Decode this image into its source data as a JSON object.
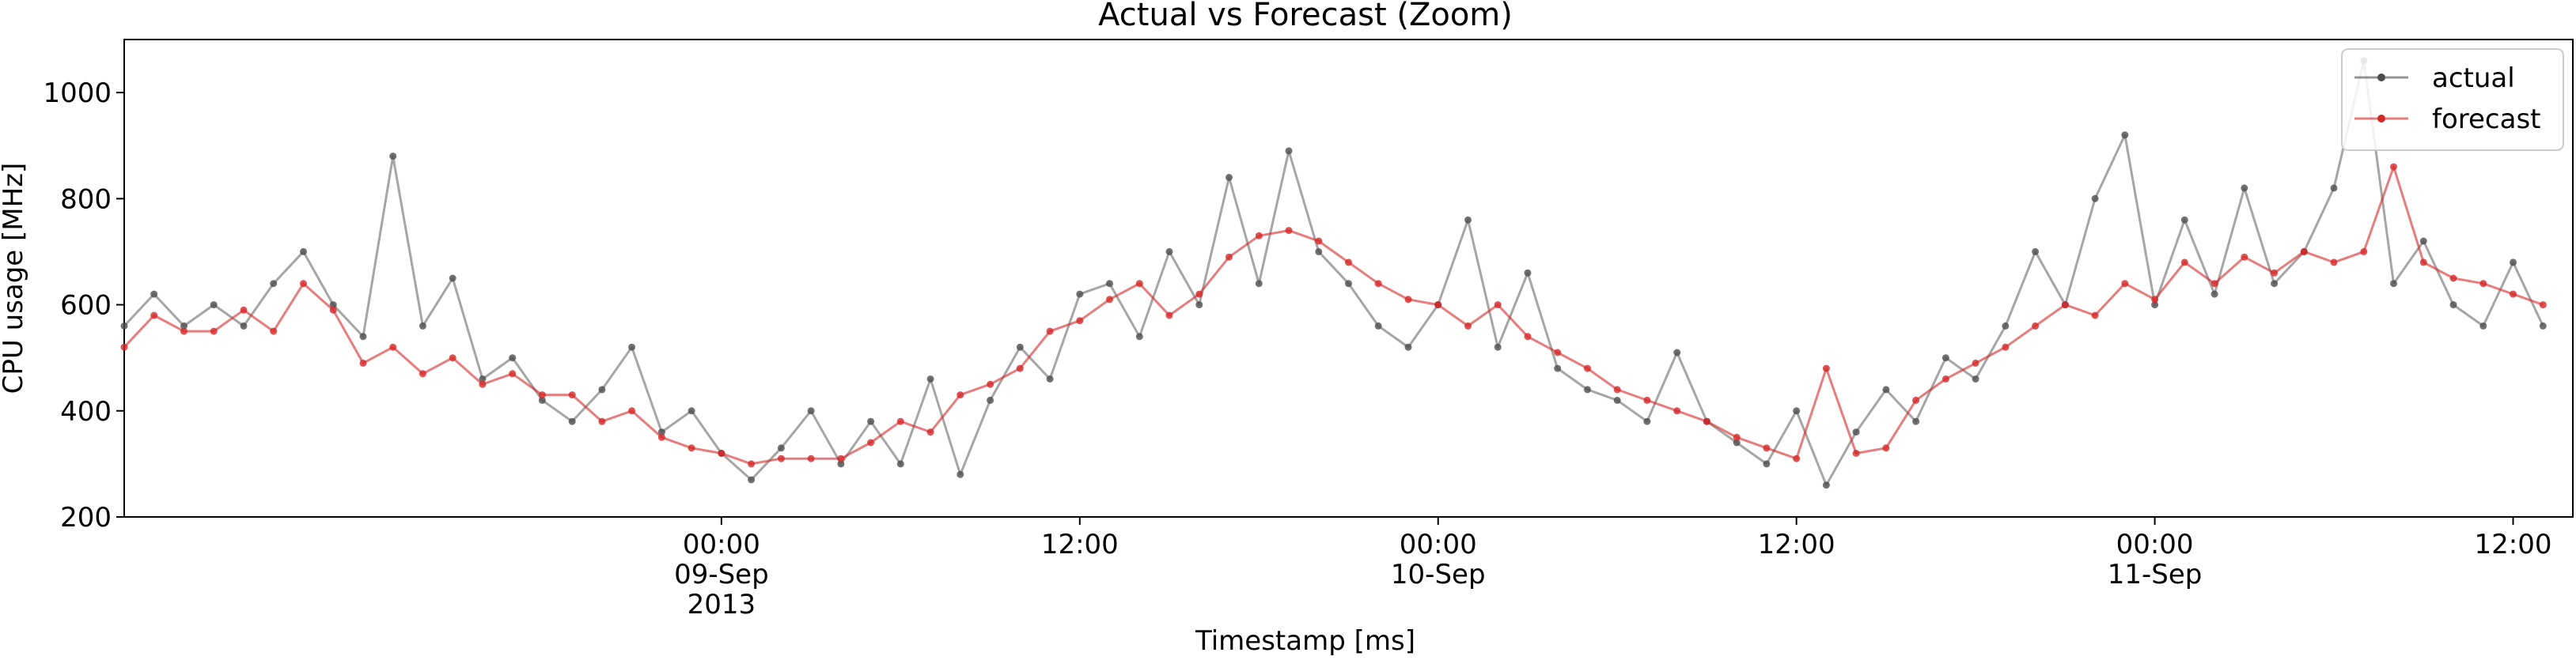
{
  "chart_data": {
    "type": "line",
    "title": "Actual vs Forecast (Zoom)",
    "xlabel": "Timestamp [ms]",
    "ylabel": "CPU usage [MHz]",
    "xlim": [
      "2013-09-08T04:00",
      "2013-09-11T14:00"
    ],
    "ylim": [
      200,
      1100
    ],
    "yticks": [
      200,
      400,
      600,
      800,
      1000
    ],
    "xticks": [
      {
        "x": "2013-09-09T00:00",
        "label": "00:00\n09-Sep\n2013"
      },
      {
        "x": "2013-09-09T12:00",
        "label": "12:00"
      },
      {
        "x": "2013-09-10T00:00",
        "label": "00:00\n10-Sep"
      },
      {
        "x": "2013-09-10T12:00",
        "label": "12:00"
      },
      {
        "x": "2013-09-11T00:00",
        "label": "00:00\n11-Sep"
      },
      {
        "x": "2013-09-11T12:00",
        "label": "12:00"
      }
    ],
    "grid": false,
    "legend_position": "top-right",
    "series": [
      {
        "name": "actual",
        "color": "#4d4d4d",
        "points": [
          [
            "2013-09-08T04:00",
            560
          ],
          [
            "2013-09-08T05:00",
            620
          ],
          [
            "2013-09-08T06:00",
            560
          ],
          [
            "2013-09-08T07:00",
            600
          ],
          [
            "2013-09-08T08:00",
            560
          ],
          [
            "2013-09-08T09:00",
            640
          ],
          [
            "2013-09-08T10:00",
            700
          ],
          [
            "2013-09-08T11:00",
            600
          ],
          [
            "2013-09-08T12:00",
            540
          ],
          [
            "2013-09-08T13:00",
            880
          ],
          [
            "2013-09-08T14:00",
            560
          ],
          [
            "2013-09-08T15:00",
            650
          ],
          [
            "2013-09-08T16:00",
            460
          ],
          [
            "2013-09-08T17:00",
            500
          ],
          [
            "2013-09-08T18:00",
            420
          ],
          [
            "2013-09-08T19:00",
            380
          ],
          [
            "2013-09-08T20:00",
            440
          ],
          [
            "2013-09-08T21:00",
            520
          ],
          [
            "2013-09-08T22:00",
            360
          ],
          [
            "2013-09-08T23:00",
            400
          ],
          [
            "2013-09-09T00:00",
            320
          ],
          [
            "2013-09-09T01:00",
            270
          ],
          [
            "2013-09-09T02:00",
            330
          ],
          [
            "2013-09-09T03:00",
            400
          ],
          [
            "2013-09-09T04:00",
            300
          ],
          [
            "2013-09-09T05:00",
            380
          ],
          [
            "2013-09-09T06:00",
            300
          ],
          [
            "2013-09-09T07:00",
            460
          ],
          [
            "2013-09-09T08:00",
            280
          ],
          [
            "2013-09-09T09:00",
            420
          ],
          [
            "2013-09-09T10:00",
            520
          ],
          [
            "2013-09-09T11:00",
            460
          ],
          [
            "2013-09-09T12:00",
            620
          ],
          [
            "2013-09-09T13:00",
            640
          ],
          [
            "2013-09-09T14:00",
            540
          ],
          [
            "2013-09-09T15:00",
            700
          ],
          [
            "2013-09-09T16:00",
            600
          ],
          [
            "2013-09-09T17:00",
            840
          ],
          [
            "2013-09-09T18:00",
            640
          ],
          [
            "2013-09-09T19:00",
            890
          ],
          [
            "2013-09-09T20:00",
            700
          ],
          [
            "2013-09-09T21:00",
            640
          ],
          [
            "2013-09-09T22:00",
            560
          ],
          [
            "2013-09-09T23:00",
            520
          ],
          [
            "2013-09-10T00:00",
            600
          ],
          [
            "2013-09-10T01:00",
            760
          ],
          [
            "2013-09-10T02:00",
            520
          ],
          [
            "2013-09-10T03:00",
            660
          ],
          [
            "2013-09-10T04:00",
            480
          ],
          [
            "2013-09-10T05:00",
            440
          ],
          [
            "2013-09-10T06:00",
            420
          ],
          [
            "2013-09-10T07:00",
            380
          ],
          [
            "2013-09-10T08:00",
            510
          ],
          [
            "2013-09-10T09:00",
            380
          ],
          [
            "2013-09-10T10:00",
            340
          ],
          [
            "2013-09-10T11:00",
            300
          ],
          [
            "2013-09-10T12:00",
            400
          ],
          [
            "2013-09-10T13:00",
            260
          ],
          [
            "2013-09-10T14:00",
            360
          ],
          [
            "2013-09-10T15:00",
            440
          ],
          [
            "2013-09-10T16:00",
            380
          ],
          [
            "2013-09-10T17:00",
            500
          ],
          [
            "2013-09-10T18:00",
            460
          ],
          [
            "2013-09-10T19:00",
            560
          ],
          [
            "2013-09-10T20:00",
            700
          ],
          [
            "2013-09-10T21:00",
            600
          ],
          [
            "2013-09-10T22:00",
            800
          ],
          [
            "2013-09-10T23:00",
            920
          ],
          [
            "2013-09-11T00:00",
            600
          ],
          [
            "2013-09-11T01:00",
            760
          ],
          [
            "2013-09-11T02:00",
            620
          ],
          [
            "2013-09-11T03:00",
            820
          ],
          [
            "2013-09-11T04:00",
            640
          ],
          [
            "2013-09-11T05:00",
            700
          ],
          [
            "2013-09-11T06:00",
            820
          ],
          [
            "2013-09-11T07:00",
            1060
          ],
          [
            "2013-09-11T08:00",
            640
          ],
          [
            "2013-09-11T09:00",
            720
          ],
          [
            "2013-09-11T10:00",
            600
          ],
          [
            "2013-09-11T11:00",
            560
          ],
          [
            "2013-09-11T12:00",
            680
          ],
          [
            "2013-09-11T13:00",
            560
          ]
        ]
      },
      {
        "name": "forecast",
        "color": "#d62728",
        "points": [
          [
            "2013-09-08T04:00",
            520
          ],
          [
            "2013-09-08T05:00",
            580
          ],
          [
            "2013-09-08T06:00",
            550
          ],
          [
            "2013-09-08T07:00",
            550
          ],
          [
            "2013-09-08T08:00",
            590
          ],
          [
            "2013-09-08T09:00",
            550
          ],
          [
            "2013-09-08T10:00",
            640
          ],
          [
            "2013-09-08T11:00",
            590
          ],
          [
            "2013-09-08T12:00",
            490
          ],
          [
            "2013-09-08T13:00",
            520
          ],
          [
            "2013-09-08T14:00",
            470
          ],
          [
            "2013-09-08T15:00",
            500
          ],
          [
            "2013-09-08T16:00",
            450
          ],
          [
            "2013-09-08T17:00",
            470
          ],
          [
            "2013-09-08T18:00",
            430
          ],
          [
            "2013-09-08T19:00",
            430
          ],
          [
            "2013-09-08T20:00",
            380
          ],
          [
            "2013-09-08T21:00",
            400
          ],
          [
            "2013-09-08T22:00",
            350
          ],
          [
            "2013-09-08T23:00",
            330
          ],
          [
            "2013-09-09T00:00",
            320
          ],
          [
            "2013-09-09T01:00",
            300
          ],
          [
            "2013-09-09T02:00",
            310
          ],
          [
            "2013-09-09T03:00",
            310
          ],
          [
            "2013-09-09T04:00",
            310
          ],
          [
            "2013-09-09T05:00",
            340
          ],
          [
            "2013-09-09T06:00",
            380
          ],
          [
            "2013-09-09T07:00",
            360
          ],
          [
            "2013-09-09T08:00",
            430
          ],
          [
            "2013-09-09T09:00",
            450
          ],
          [
            "2013-09-09T10:00",
            480
          ],
          [
            "2013-09-09T11:00",
            550
          ],
          [
            "2013-09-09T12:00",
            570
          ],
          [
            "2013-09-09T13:00",
            610
          ],
          [
            "2013-09-09T14:00",
            640
          ],
          [
            "2013-09-09T15:00",
            580
          ],
          [
            "2013-09-09T16:00",
            620
          ],
          [
            "2013-09-09T17:00",
            690
          ],
          [
            "2013-09-09T18:00",
            730
          ],
          [
            "2013-09-09T19:00",
            740
          ],
          [
            "2013-09-09T20:00",
            720
          ],
          [
            "2013-09-09T21:00",
            680
          ],
          [
            "2013-09-09T22:00",
            640
          ],
          [
            "2013-09-09T23:00",
            610
          ],
          [
            "2013-09-10T00:00",
            600
          ],
          [
            "2013-09-10T01:00",
            560
          ],
          [
            "2013-09-10T02:00",
            600
          ],
          [
            "2013-09-10T03:00",
            540
          ],
          [
            "2013-09-10T04:00",
            510
          ],
          [
            "2013-09-10T05:00",
            480
          ],
          [
            "2013-09-10T06:00",
            440
          ],
          [
            "2013-09-10T07:00",
            420
          ],
          [
            "2013-09-10T08:00",
            400
          ],
          [
            "2013-09-10T09:00",
            380
          ],
          [
            "2013-09-10T10:00",
            350
          ],
          [
            "2013-09-10T11:00",
            330
          ],
          [
            "2013-09-10T12:00",
            310
          ],
          [
            "2013-09-10T13:00",
            480
          ],
          [
            "2013-09-10T14:00",
            320
          ],
          [
            "2013-09-10T15:00",
            330
          ],
          [
            "2013-09-10T16:00",
            420
          ],
          [
            "2013-09-10T17:00",
            460
          ],
          [
            "2013-09-10T18:00",
            490
          ],
          [
            "2013-09-10T19:00",
            520
          ],
          [
            "2013-09-10T20:00",
            560
          ],
          [
            "2013-09-10T21:00",
            600
          ],
          [
            "2013-09-10T22:00",
            580
          ],
          [
            "2013-09-10T23:00",
            640
          ],
          [
            "2013-09-11T00:00",
            610
          ],
          [
            "2013-09-11T01:00",
            680
          ],
          [
            "2013-09-11T02:00",
            640
          ],
          [
            "2013-09-11T03:00",
            690
          ],
          [
            "2013-09-11T04:00",
            660
          ],
          [
            "2013-09-11T05:00",
            700
          ],
          [
            "2013-09-11T06:00",
            680
          ],
          [
            "2013-09-11T07:00",
            700
          ],
          [
            "2013-09-11T08:00",
            860
          ],
          [
            "2013-09-11T09:00",
            680
          ],
          [
            "2013-09-11T10:00",
            650
          ],
          [
            "2013-09-11T11:00",
            640
          ],
          [
            "2013-09-11T12:00",
            620
          ],
          [
            "2013-09-11T13:00",
            600
          ]
        ]
      }
    ]
  }
}
